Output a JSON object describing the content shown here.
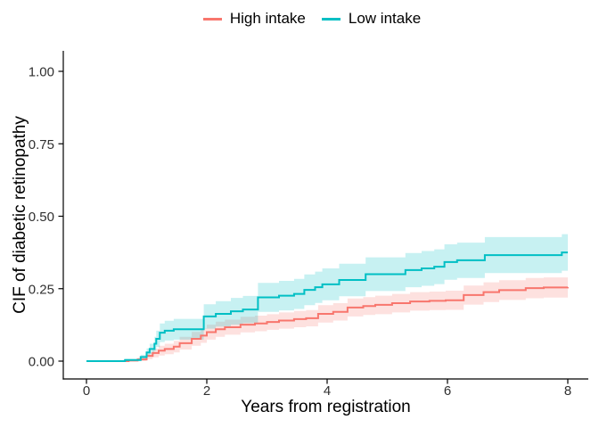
{
  "chart_data": {
    "type": "line",
    "subtype": "step_cumulative_incidence_with_confidence_bands",
    "title": "",
    "xlabel": "Years from registration",
    "ylabel": "CIF of diabetic retinopathy",
    "xlim": [
      0,
      8
    ],
    "ylim": [
      0,
      1.0
    ],
    "grid": false,
    "legend_position": "top-center",
    "background_color": "#ffffff",
    "axis_color": "#000000",
    "tick_label_color": "#303030",
    "x_axis": {
      "ticks": [
        0,
        2,
        4,
        6,
        8
      ],
      "tick_labels": [
        "0",
        "2",
        "4",
        "6",
        "8"
      ]
    },
    "y_axis": {
      "ticks": [
        0,
        0.25,
        0.5,
        0.75,
        1.0
      ],
      "tick_labels": [
        "0.00",
        "0.25",
        "0.50",
        "0.75",
        "1.00"
      ]
    },
    "series": [
      {
        "name": "High intake",
        "color": "#F8766D",
        "band_opacity": 0.22,
        "points_format": [
          "time_years",
          "cif",
          "ci_lower",
          "ci_upper"
        ],
        "points": [
          [
            0,
            0,
            0,
            0
          ],
          [
            0.7,
            0.002,
            0,
            0.005
          ],
          [
            0.85,
            0.006,
            0.001,
            0.012
          ],
          [
            1.0,
            0.018,
            0.007,
            0.03
          ],
          [
            1.1,
            0.028,
            0.013,
            0.043
          ],
          [
            1.2,
            0.036,
            0.019,
            0.053
          ],
          [
            1.3,
            0.042,
            0.024,
            0.06
          ],
          [
            1.45,
            0.05,
            0.03,
            0.07
          ],
          [
            1.55,
            0.062,
            0.04,
            0.084
          ],
          [
            1.75,
            0.077,
            0.053,
            0.101
          ],
          [
            1.9,
            0.088,
            0.063,
            0.113
          ],
          [
            2.0,
            0.1,
            0.074,
            0.126
          ],
          [
            2.15,
            0.11,
            0.084,
            0.136
          ],
          [
            2.3,
            0.117,
            0.091,
            0.143
          ],
          [
            2.56,
            0.126,
            0.099,
            0.153
          ],
          [
            2.8,
            0.13,
            0.103,
            0.157
          ],
          [
            3.0,
            0.135,
            0.108,
            0.162
          ],
          [
            3.2,
            0.14,
            0.112,
            0.168
          ],
          [
            3.45,
            0.145,
            0.117,
            0.173
          ],
          [
            3.65,
            0.148,
            0.12,
            0.176
          ],
          [
            3.85,
            0.163,
            0.133,
            0.193
          ],
          [
            4.1,
            0.17,
            0.14,
            0.2
          ],
          [
            4.34,
            0.185,
            0.154,
            0.216
          ],
          [
            4.6,
            0.19,
            0.159,
            0.221
          ],
          [
            4.8,
            0.194,
            0.162,
            0.226
          ],
          [
            5.08,
            0.2,
            0.168,
            0.232
          ],
          [
            5.38,
            0.206,
            0.174,
            0.238
          ],
          [
            5.7,
            0.208,
            0.176,
            0.24
          ],
          [
            5.97,
            0.21,
            0.177,
            0.243
          ],
          [
            6.27,
            0.228,
            0.195,
            0.261
          ],
          [
            6.6,
            0.238,
            0.204,
            0.272
          ],
          [
            6.86,
            0.245,
            0.211,
            0.279
          ],
          [
            7.3,
            0.252,
            0.217,
            0.287
          ],
          [
            7.6,
            0.254,
            0.219,
            0.289
          ],
          [
            8.0,
            0.255,
            0.22,
            0.29
          ]
        ]
      },
      {
        "name": "Low intake",
        "color": "#00BFC4",
        "band_opacity": 0.22,
        "points_format": [
          "time_years",
          "cif",
          "ci_lower",
          "ci_upper"
        ],
        "points": [
          [
            0,
            0,
            0,
            0
          ],
          [
            0.64,
            0.004,
            0,
            0.008
          ],
          [
            0.9,
            0.014,
            0.006,
            0.022
          ],
          [
            1.0,
            0.03,
            0.016,
            0.044
          ],
          [
            1.05,
            0.042,
            0.024,
            0.06
          ],
          [
            1.13,
            0.06,
            0.036,
            0.084
          ],
          [
            1.16,
            0.077,
            0.049,
            0.105
          ],
          [
            1.22,
            0.098,
            0.066,
            0.13
          ],
          [
            1.3,
            0.105,
            0.071,
            0.139
          ],
          [
            1.45,
            0.11,
            0.074,
            0.146
          ],
          [
            1.95,
            0.154,
            0.112,
            0.196
          ],
          [
            2.15,
            0.163,
            0.119,
            0.207
          ],
          [
            2.4,
            0.172,
            0.126,
            0.218
          ],
          [
            2.6,
            0.178,
            0.131,
            0.225
          ],
          [
            2.85,
            0.22,
            0.17,
            0.27
          ],
          [
            3.2,
            0.226,
            0.175,
            0.277
          ],
          [
            3.45,
            0.232,
            0.18,
            0.284
          ],
          [
            3.62,
            0.246,
            0.193,
            0.299
          ],
          [
            3.8,
            0.255,
            0.201,
            0.309
          ],
          [
            3.92,
            0.265,
            0.21,
            0.32
          ],
          [
            4.2,
            0.28,
            0.224,
            0.336
          ],
          [
            4.64,
            0.3,
            0.242,
            0.358
          ],
          [
            5.3,
            0.314,
            0.255,
            0.373
          ],
          [
            5.57,
            0.32,
            0.26,
            0.38
          ],
          [
            5.78,
            0.326,
            0.266,
            0.386
          ],
          [
            5.95,
            0.342,
            0.281,
            0.403
          ],
          [
            6.16,
            0.348,
            0.287,
            0.409
          ],
          [
            6.62,
            0.366,
            0.304,
            0.428
          ],
          [
            7.9,
            0.375,
            0.312,
            0.438
          ],
          [
            8.0,
            0.375,
            0.312,
            0.438
          ]
        ]
      }
    ]
  }
}
